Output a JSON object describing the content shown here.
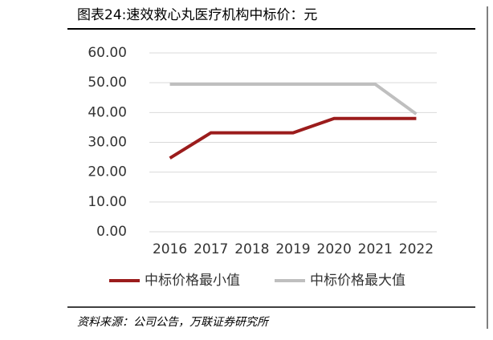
{
  "chart_data": {
    "type": "line",
    "title": "图表24:速效救心丸医疗机构中标价：元",
    "source": "资料来源：公司公告，万联证券研究所",
    "categories": [
      "2016",
      "2017",
      "2018",
      "2019",
      "2020",
      "2021",
      "2022"
    ],
    "series": [
      {
        "name": "中标价格最小值",
        "color": "#9b1c1c",
        "values": [
          24.7,
          33.2,
          33.2,
          33.2,
          38,
          38,
          38
        ]
      },
      {
        "name": "中标价格最大值",
        "color": "#bfbfbf",
        "values": [
          49.5,
          49.5,
          49.5,
          49.5,
          49.5,
          49.5,
          39.5
        ]
      }
    ],
    "ylim": [
      0,
      60
    ],
    "yticks": [
      {
        "value": 0,
        "label": "0.00"
      },
      {
        "value": 10,
        "label": "10.00"
      },
      {
        "value": 20,
        "label": "20.00"
      },
      {
        "value": 30,
        "label": "30.00"
      },
      {
        "value": 40,
        "label": "40.00"
      },
      {
        "value": 50,
        "label": "50.00"
      },
      {
        "value": 60,
        "label": "60.00"
      }
    ],
    "grid": true
  }
}
